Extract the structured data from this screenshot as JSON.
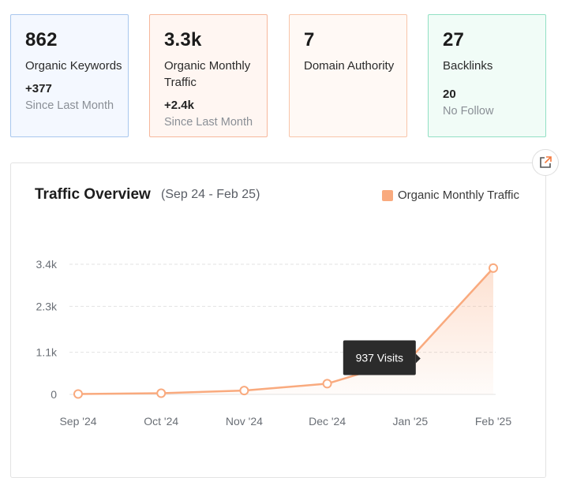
{
  "cards": [
    {
      "id": "keywords",
      "value": "862",
      "label": "Organic Keywords",
      "delta": "+377",
      "sub": "Since Last Month"
    },
    {
      "id": "traffic",
      "value": "3.3k",
      "label": "Organic Monthly Traffic",
      "delta": "+2.4k",
      "sub": "Since Last Month"
    },
    {
      "id": "authority",
      "value": "7",
      "label": "Domain Authority"
    },
    {
      "id": "backlinks",
      "value": "27",
      "label": "Backlinks",
      "delta": "20",
      "sub": "No Follow"
    }
  ],
  "overview": {
    "title": "Traffic Overview",
    "range": "(Sep 24 - Feb 25)",
    "legend": "Organic Monthly Traffic",
    "tooltip": "937 Visits",
    "external_link_icon": "external-link-icon"
  },
  "chart_data": {
    "type": "area",
    "categories": [
      "Sep '24",
      "Oct '24",
      "Nov '24",
      "Dec '24",
      "Jan '25",
      "Feb '25"
    ],
    "series": [
      {
        "name": "Organic Monthly Traffic",
        "values": [
          10,
          30,
          100,
          280,
          937,
          3300
        ]
      }
    ],
    "y_ticks": [
      0,
      1100,
      2300,
      3400
    ],
    "y_tick_labels": [
      "0",
      "1.1k",
      "2.3k",
      "3.4k"
    ],
    "ylim": [
      0,
      3400
    ],
    "grid": true,
    "legend_position": "top-right",
    "highlight_index": 4,
    "colors": {
      "line": "#f9aa7e",
      "point_fill": "#ffffff",
      "tooltip_bg": "#2b2b2b"
    }
  }
}
